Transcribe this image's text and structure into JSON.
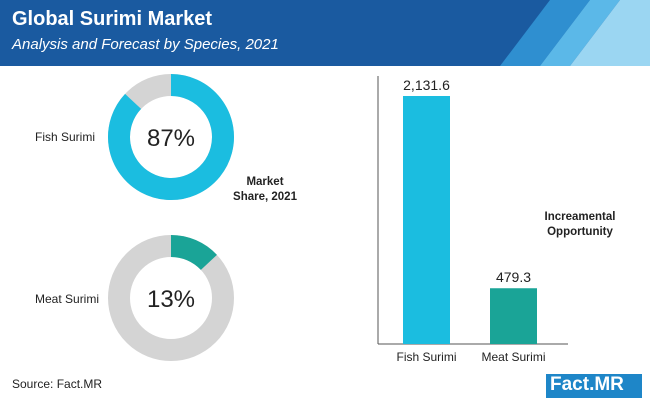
{
  "header": {
    "title": "Global Surimi Market",
    "subtitle": "Analysis and Forecast by Species, 2021"
  },
  "colors": {
    "header_bg": "#1a5aa0",
    "fish": "#1bbde0",
    "meat": "#1aa497",
    "donut_rest": "#d4d4d4"
  },
  "market_share_label": "Market\nShare, 2021",
  "incremental_label": "Increamental\nOpportunity",
  "source": "Source: Fact.MR",
  "logo": "Fact.MR",
  "chart_data": [
    {
      "type": "pie",
      "title": "Market Share, 2021",
      "slices": [
        {
          "name": "Fish Surimi",
          "value": 87,
          "label": "87%"
        },
        {
          "name": "Meat Surimi",
          "value": 13,
          "label": "13%"
        }
      ]
    },
    {
      "type": "bar",
      "title": "Increamental Opportunity",
      "categories": [
        "Fish Surimi",
        "Meat Surimi"
      ],
      "values": [
        2131.6,
        479.3
      ],
      "value_labels": [
        "2,131.6",
        "479.3"
      ],
      "ylim": [
        0,
        2300
      ]
    }
  ]
}
